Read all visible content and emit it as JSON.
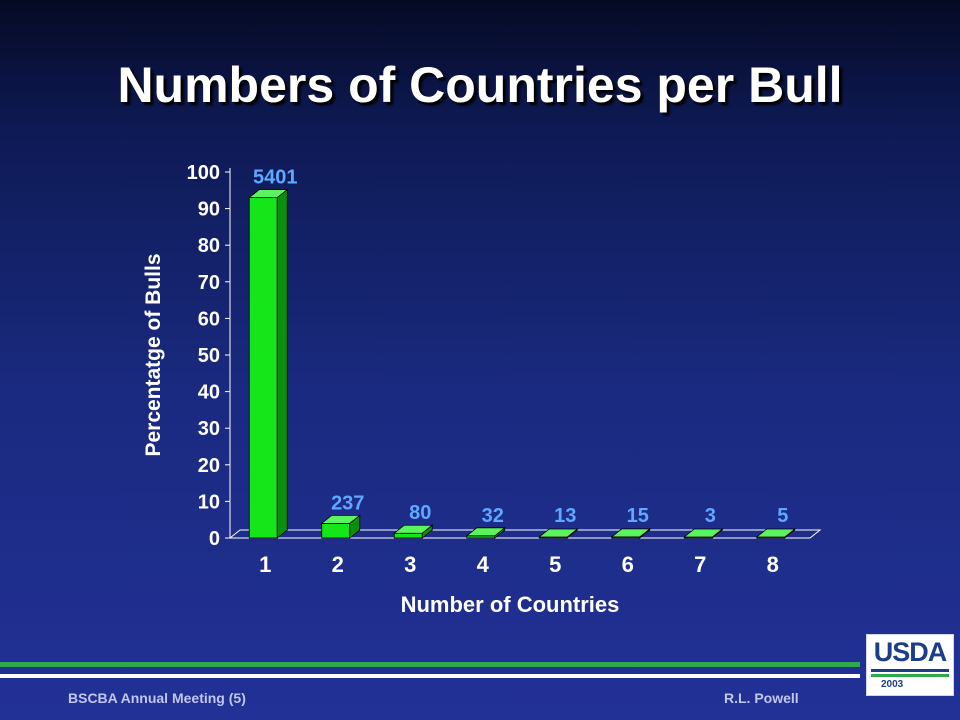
{
  "slide": {
    "title": "Numbers of Countries per Bull",
    "footer_left": "BSCBA Annual Meeting (5)",
    "footer_right": "R.L. Powell",
    "logo_text": "USDA",
    "logo_year": "2003"
  },
  "colors": {
    "bar_front": "#14e61a",
    "bar_side": "#0a8f0e",
    "bar_top": "#5af55e",
    "data_label": "#5fa8ff",
    "axis_text": "#ffffff"
  },
  "chart_data": {
    "type": "bar",
    "title": "",
    "xlabel": "Number of Countries",
    "ylabel": "Percentatge of Bulls",
    "categories": [
      "1",
      "2",
      "3",
      "4",
      "5",
      "6",
      "7",
      "8"
    ],
    "values": [
      93,
      4,
      1.3,
      0.6,
      0.2,
      0.3,
      0.05,
      0.1
    ],
    "data_labels": [
      "5401",
      "237",
      "80",
      "32",
      "13",
      "15",
      "3",
      "5"
    ],
    "ylim": [
      0,
      100
    ],
    "yticks": [
      "0",
      "10",
      "20",
      "30",
      "40",
      "50",
      "60",
      "70",
      "80",
      "90",
      "100"
    ],
    "grid": false,
    "legend": "none"
  }
}
